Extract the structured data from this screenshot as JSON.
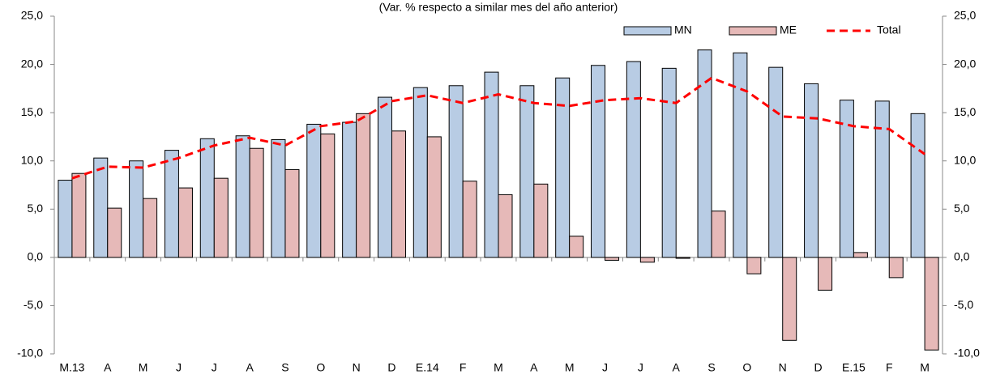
{
  "chart_data": {
    "type": "bar",
    "subtitle": "(Var. % respecto a similar mes del año anterior)",
    "categories": [
      "M.13",
      "A",
      "M",
      "J",
      "J",
      "A",
      "S",
      "O",
      "N",
      "D",
      "E.14",
      "F",
      "M",
      "A",
      "M",
      "J",
      "J",
      "A",
      "S",
      "O",
      "N",
      "D",
      "E.15",
      "F",
      "M"
    ],
    "series": [
      {
        "name": "MN",
        "type": "bar",
        "color": "#b8cce4",
        "values": [
          8.0,
          10.3,
          10.0,
          11.1,
          12.3,
          12.6,
          12.2,
          13.8,
          14.0,
          16.6,
          17.6,
          17.8,
          19.2,
          17.8,
          18.6,
          19.9,
          20.3,
          19.6,
          21.5,
          21.2,
          19.7,
          18.0,
          16.3,
          16.2,
          14.9
        ]
      },
      {
        "name": "ME",
        "type": "bar",
        "color": "#e6b9b8",
        "values": [
          8.7,
          5.1,
          6.1,
          7.2,
          8.2,
          11.3,
          9.1,
          12.8,
          14.9,
          13.1,
          12.5,
          7.9,
          6.5,
          7.6,
          2.2,
          -0.3,
          -0.5,
          -0.1,
          4.8,
          -1.7,
          -8.6,
          -3.4,
          0.5,
          -2.1,
          -9.6
        ]
      },
      {
        "name": "Total",
        "type": "line",
        "color": "#ff0000",
        "values": [
          8.2,
          9.4,
          9.3,
          10.3,
          11.6,
          12.4,
          11.6,
          13.6,
          14.1,
          16.2,
          16.8,
          16.0,
          16.9,
          16.0,
          15.7,
          16.3,
          16.5,
          16.0,
          18.6,
          17.2,
          14.6,
          14.4,
          13.6,
          13.3,
          10.7
        ]
      }
    ],
    "ylim": [
      -10,
      25
    ],
    "yticks": [
      {
        "value": -10,
        "label": "-10,0"
      },
      {
        "value": -5,
        "label": "-5,0"
      },
      {
        "value": 0,
        "label": "0,0"
      },
      {
        "value": 5,
        "label": "5,0"
      },
      {
        "value": 10,
        "label": "10,0"
      },
      {
        "value": 15,
        "label": "15,0"
      },
      {
        "value": 20,
        "label": "20,0"
      },
      {
        "value": 25,
        "label": "25,0"
      }
    ],
    "y2lim": [
      -10,
      25
    ],
    "y2ticks": [
      {
        "value": -10,
        "label": "-10,0"
      },
      {
        "value": -5,
        "label": "-5,0"
      },
      {
        "value": 0,
        "label": "0,0"
      },
      {
        "value": 5,
        "label": "5,0"
      },
      {
        "value": 10,
        "label": "10,0"
      },
      {
        "value": 15,
        "label": "15,0"
      },
      {
        "value": 20,
        "label": "20,0"
      },
      {
        "value": 25,
        "label": "25,0"
      }
    ],
    "legend": "top-right"
  }
}
